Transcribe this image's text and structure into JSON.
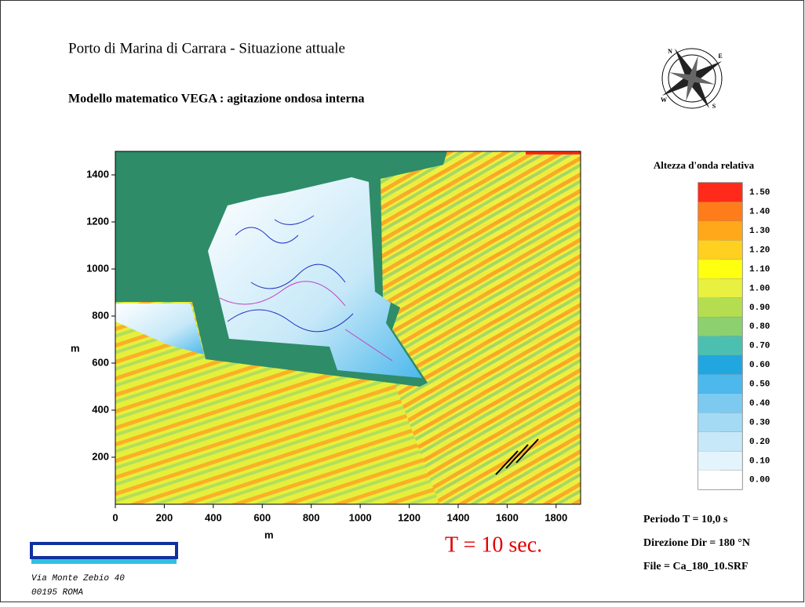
{
  "chart_data": {
    "type": "contour",
    "title": "Porto di Marina di Carrara - Situazione attuale",
    "subtitle": "Modello matematico VEGA : agitazione ondosa interna",
    "xlabel": "m",
    "ylabel": "m",
    "xlim": [
      0,
      1900
    ],
    "ylim": [
      0,
      1500
    ],
    "xticks": [
      0,
      200,
      400,
      600,
      800,
      1000,
      1200,
      1400,
      1600,
      1800
    ],
    "yticks": [
      200,
      400,
      600,
      800,
      1000,
      1200,
      1400
    ],
    "colorbar": {
      "title": "Altezza d'onda relativa",
      "ticks": [
        {
          "value": 0,
          "label": "0.00"
        },
        {
          "value": 0.1,
          "label": "0.10"
        },
        {
          "value": 0.2,
          "label": "0.20"
        },
        {
          "value": 0.3,
          "label": "0.30"
        },
        {
          "value": 0.4,
          "label": "0.40"
        },
        {
          "value": 0.5,
          "label": "0.50"
        },
        {
          "value": 0.6,
          "label": "0.60"
        },
        {
          "value": 0.7,
          "label": "0.70"
        },
        {
          "value": 0.8,
          "label": "0.80"
        },
        {
          "value": 0.9,
          "label": "0.90"
        },
        {
          "value": 1,
          "label": "1.00"
        },
        {
          "value": 1.1,
          "label": "1.10"
        },
        {
          "value": 1.2,
          "label": "1.20"
        },
        {
          "value": 1.3,
          "label": "1.30"
        },
        {
          "value": 1.4,
          "label": "1.40"
        },
        {
          "value": 1.5,
          "label": "1.50"
        }
      ],
      "colors": [
        "#ffffff",
        "#e4f4fc",
        "#c6e8f8",
        "#a4daf4",
        "#7ccaf0",
        "#4cb8ec",
        "#22a6e0",
        "#4cc0b0",
        "#8cd070",
        "#b4de50",
        "#e8f040",
        "#ffff10",
        "#ffd020",
        "#ffa81a",
        "#ff7c1a",
        "#ff2a1a"
      ]
    },
    "annotation": "T = 10 sec.",
    "info": [
      "Periodo  T = 10,0 s",
      "Direzione  Dir = 180 °N",
      "File = Ca_180_10.SRF"
    ],
    "compass": [
      "N",
      "E",
      "S",
      "W"
    ],
    "address": [
      "Via Monte Zebio 40",
      "00195 ROMA"
    ]
  }
}
